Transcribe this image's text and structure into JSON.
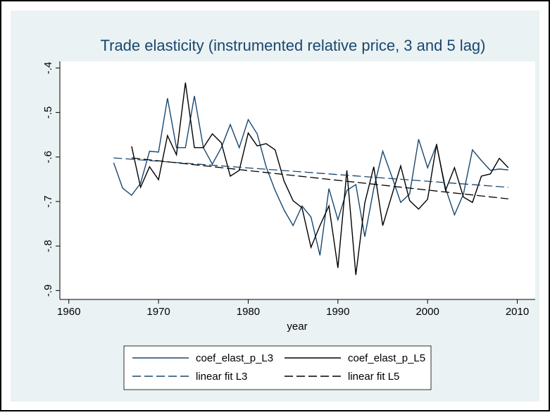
{
  "chart_data": {
    "type": "line",
    "title": "Trade elasticity (instrumented relative price, 3 and 5 lag)",
    "x_label": "year",
    "x": [
      1965,
      1966,
      1967,
      1968,
      1969,
      1970,
      1971,
      1972,
      1973,
      1974,
      1975,
      1976,
      1977,
      1978,
      1979,
      1980,
      1981,
      1982,
      1983,
      1984,
      1985,
      1986,
      1987,
      1988,
      1989,
      1990,
      1991,
      1992,
      1993,
      1994,
      1995,
      1996,
      1997,
      1998,
      1999,
      2000,
      2001,
      2002,
      2003,
      2004,
      2005,
      2006,
      2007,
      2008,
      2009
    ],
    "series": [
      {
        "name": "coef_elast_p_L3",
        "color": "#1a476f",
        "dashed": false,
        "values": [
          -0.613,
          -0.67,
          -0.686,
          -0.659,
          -0.587,
          -0.589,
          -0.468,
          -0.579,
          -0.579,
          -0.463,
          -0.579,
          -0.616,
          -0.579,
          -0.527,
          -0.579,
          -0.516,
          -0.548,
          -0.622,
          -0.675,
          -0.719,
          -0.754,
          -0.71,
          -0.735,
          -0.821,
          -0.671,
          -0.741,
          -0.675,
          -0.662,
          -0.779,
          -0.671,
          -0.587,
          -0.643,
          -0.702,
          -0.683,
          -0.56,
          -0.624,
          -0.573,
          -0.67,
          -0.73,
          -0.683,
          -0.584,
          -0.608,
          -0.63,
          -0.627,
          -0.629
        ]
      },
      {
        "name": "coef_elast_p_L5",
        "color": "#000000",
        "dashed": false,
        "values": [
          null,
          null,
          -0.576,
          -0.668,
          -0.622,
          -0.651,
          -0.552,
          -0.595,
          -0.433,
          -0.579,
          -0.579,
          -0.548,
          -0.568,
          -0.643,
          -0.63,
          -0.546,
          -0.575,
          -0.57,
          -0.584,
          -0.654,
          -0.698,
          -0.714,
          -0.803,
          -0.754,
          -0.71,
          -0.849,
          -0.63,
          -0.865,
          -0.703,
          -0.622,
          -0.754,
          -0.687,
          -0.62,
          -0.698,
          -0.717,
          -0.695,
          -0.571,
          -0.675,
          -0.624,
          -0.69,
          -0.702,
          -0.643,
          -0.638,
          -0.603,
          -0.624
        ]
      },
      {
        "name": "linear fit L3",
        "color": "#1a476f",
        "dashed": true,
        "x": [
          1965,
          2009
        ],
        "values": [
          -0.602,
          -0.668
        ]
      },
      {
        "name": "linear fit L5",
        "color": "#000000",
        "dashed": true,
        "x": [
          1967,
          2009
        ],
        "values": [
          -0.602,
          -0.694
        ]
      }
    ],
    "xlim": [
      1959,
      2012
    ],
    "xticks": [
      1960,
      1970,
      1980,
      1990,
      2000,
      2010
    ],
    "ylim": [
      -0.92,
      -0.385
    ],
    "yticks": [
      {
        "value": -0.4,
        "label": "-.4"
      },
      {
        "value": -0.5,
        "label": "-.5"
      },
      {
        "value": -0.6,
        "label": "-.6"
      },
      {
        "value": -0.7,
        "label": "-.7"
      },
      {
        "value": -0.8,
        "label": "-.8"
      },
      {
        "value": -0.9,
        "label": "-.9"
      }
    ]
  }
}
